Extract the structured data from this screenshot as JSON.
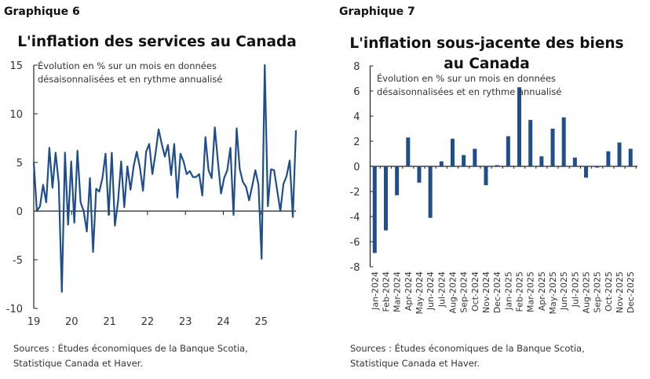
{
  "chart_data": [
    {
      "type": "line",
      "label": "Graphique 6",
      "title": "L'inflation des services au Canada",
      "subtitle": [
        "Évolution en % sur un mois en données",
        "désaisonnalisées et en rythme annualisé"
      ],
      "x_ticks": [
        "19",
        "20",
        "21",
        "22",
        "23",
        "24",
        "25"
      ],
      "y_ticks": [
        15,
        10,
        5,
        0,
        -5,
        -10
      ],
      "ylim": [
        -10,
        15
      ],
      "color": "#1f4e8c",
      "values": [
        5.0,
        0,
        0.5,
        2.7,
        0.9,
        6.5,
        2.4,
        6.0,
        2.9,
        -8.3,
        6.0,
        -1.4,
        5.1,
        -1.2,
        6.2,
        0.9,
        0,
        -2.1,
        3.4,
        -4.2,
        2.3,
        2.0,
        3.4,
        5.9,
        -0.4,
        6.0,
        -1.5,
        1.0,
        5.1,
        0.4,
        4.6,
        2.2,
        4.6,
        6.1,
        4.5,
        2.1,
        6.1,
        6.9,
        3.8,
        5.9,
        8.4,
        6.9,
        5.6,
        6.8,
        3.7,
        6.9,
        1.4,
        5.9,
        5.1,
        3.8,
        4.1,
        3.5,
        3.5,
        3.8,
        1.6,
        7.6,
        4.2,
        3.4,
        8.6,
        5.1,
        1.8,
        3.4,
        4.2,
        6.5,
        -0.4,
        8.5,
        4.3,
        3.0,
        2.5,
        1.1,
        2.6,
        4.2,
        2.7,
        -4.9,
        15.0,
        0.5,
        4.3,
        4.2,
        2.1,
        0,
        2.8,
        3.6,
        5.2,
        -0.6,
        8.3
      ],
      "sources": [
        "Sources : Études économiques de la Banque Scotia,",
        "Statistique Canada et Haver."
      ]
    },
    {
      "type": "bar",
      "label": "Graphique 7",
      "title": [
        "L'inflation sous-jacente des biens",
        "au Canada"
      ],
      "subtitle": [
        "Évolution en % sur un mois en données",
        "désaisonnalisées et en rythme annualisé"
      ],
      "categories": [
        "Jan-2024",
        "Feb-2024",
        "Mar-2024",
        "Apr-2024",
        "May-2024",
        "Jun-2024",
        "Jul-2024",
        "Aug-2024",
        "Sep-2024",
        "Oct-2024",
        "Nov-2024",
        "Dec-2024",
        "Jan-2025",
        "Feb-2025",
        "Mar-2025",
        "Apr-2025",
        "May-2025",
        "Jun-2025",
        "Jul-2025",
        "Aug-2025",
        "Sep-2025",
        "Oct-2025",
        "Nov-2025",
        "Dec-2025"
      ],
      "values": [
        -6.9,
        -5.1,
        -2.3,
        2.3,
        -1.3,
        -4.1,
        0.4,
        2.2,
        0.9,
        1.4,
        -1.5,
        0.1,
        2.4,
        6.3,
        3.7,
        0.8,
        3.0,
        3.9,
        0.7,
        -0.9,
        -0.1,
        1.2,
        1.9,
        1.4
      ],
      "y_ticks": [
        8,
        6,
        4,
        2,
        0,
        -2,
        -4,
        -6,
        -8
      ],
      "ylim": [
        -8,
        8
      ],
      "color": "#1f4e8c",
      "sources": [
        "Sources : Études économiques de la Banque Scotia,",
        "Statistique Canada et Haver."
      ]
    }
  ]
}
